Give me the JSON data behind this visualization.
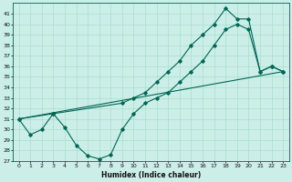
{
  "xlabel": "Humidex (Indice chaleur)",
  "bg_color": "#cceee8",
  "grid_color": "#aaddcc",
  "line_color": "#006655",
  "xlim": [
    -0.5,
    23.5
  ],
  "ylim": [
    27,
    42
  ],
  "xticks": [
    0,
    1,
    2,
    3,
    4,
    5,
    6,
    7,
    8,
    9,
    10,
    11,
    12,
    13,
    14,
    15,
    16,
    17,
    18,
    19,
    20,
    21,
    22,
    23
  ],
  "yticks": [
    27,
    28,
    29,
    30,
    31,
    32,
    33,
    34,
    35,
    36,
    37,
    38,
    39,
    40,
    41
  ],
  "series1_x": [
    0,
    1,
    2,
    3,
    4,
    5,
    6,
    7,
    8,
    9,
    10,
    11,
    12,
    13,
    14,
    15,
    16,
    17,
    18,
    19,
    20,
    21,
    22,
    23
  ],
  "series1_y": [
    31.0,
    29.5,
    30.0,
    31.5,
    30.2,
    28.5,
    27.5,
    27.2,
    27.6,
    30.0,
    31.5,
    32.5,
    33.0,
    33.5,
    34.5,
    35.5,
    36.5,
    38.0,
    39.5,
    40.0,
    39.5,
    35.5,
    36.0,
    35.5
  ],
  "series2_x": [
    0,
    3,
    9,
    10,
    11,
    12,
    13,
    14,
    15,
    16,
    17,
    18,
    19,
    20,
    21,
    22,
    23
  ],
  "series2_y": [
    31.0,
    31.5,
    32.5,
    33.0,
    33.5,
    34.5,
    35.5,
    36.5,
    38.0,
    39.0,
    40.0,
    41.5,
    40.5,
    40.5,
    35.5,
    36.0,
    35.5
  ],
  "series3_x": [
    0,
    23
  ],
  "series3_y": [
    31.0,
    35.5
  ],
  "xlabel_fontsize": 5.5,
  "tick_fontsize": 4.5
}
